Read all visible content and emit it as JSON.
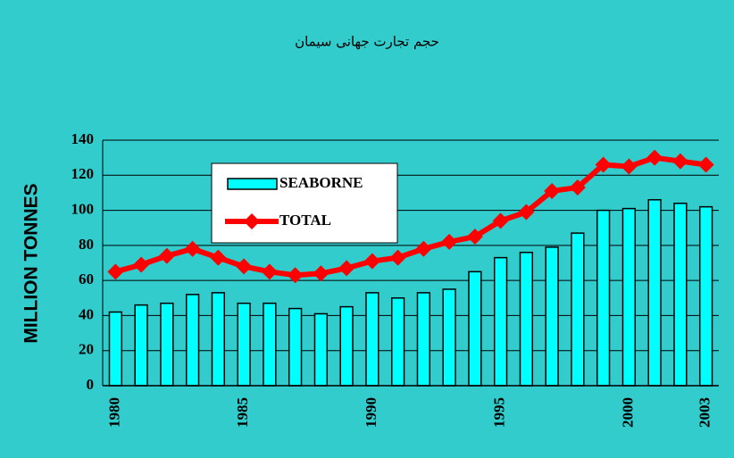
{
  "chart_data": {
    "type": "bar_line",
    "title": "حجم تجارت جهانی سیمان",
    "y_label": "MILLION TONNES",
    "categories": [
      "1980",
      null,
      null,
      null,
      null,
      "1985",
      null,
      null,
      null,
      null,
      "1990",
      null,
      null,
      null,
      null,
      "1995",
      null,
      null,
      null,
      null,
      "2000",
      null,
      null,
      "2003"
    ],
    "series": [
      {
        "name": "SEABORNE",
        "type": "bar",
        "color": "#00ffff",
        "values": [
          42,
          46,
          47,
          52,
          53,
          47,
          47,
          44,
          41,
          45,
          53,
          50,
          53,
          55,
          65,
          73,
          76,
          79,
          87,
          100,
          101,
          106,
          104,
          102
        ]
      },
      {
        "name": "TOTAL",
        "type": "line",
        "color": "#ff0000",
        "values": [
          65,
          69,
          74,
          78,
          73,
          68,
          65,
          63,
          64,
          67,
          71,
          73,
          78,
          82,
          85,
          94,
          99,
          111,
          113,
          126,
          125,
          130,
          128,
          126
        ]
      }
    ],
    "ylim": [
      0,
      140
    ],
    "yticks": [
      0,
      20,
      40,
      60,
      80,
      100,
      120,
      140
    ],
    "grid": true
  }
}
